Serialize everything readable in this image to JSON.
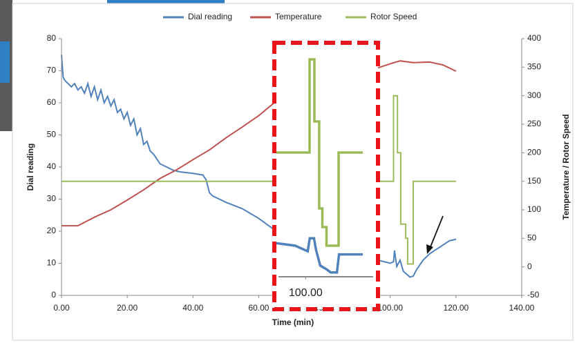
{
  "chart_data": [
    {
      "type": "line",
      "x_label": "Time (min)",
      "y_label": "Dial reading",
      "y2_label": "Temperature / Rotor Speed",
      "xlim": [
        0,
        140
      ],
      "xticks": [
        {
          "value": 0,
          "label": "0.00"
        },
        {
          "value": 20,
          "label": "20.00"
        },
        {
          "value": 40,
          "label": "40.00"
        },
        {
          "value": 60,
          "label": "60.00"
        },
        {
          "value": 80,
          "label": "80.00"
        },
        {
          "value": 100,
          "label": "100.00"
        },
        {
          "value": 120,
          "label": "120.00"
        },
        {
          "value": 140,
          "label": "140.00"
        }
      ],
      "ylim": [
        0,
        80
      ],
      "yticks": [
        0,
        10,
        20,
        30,
        40,
        50,
        60,
        70,
        80
      ],
      "y2lim": [
        -50,
        400
      ],
      "y2ticks": [
        -50,
        0,
        50,
        100,
        150,
        200,
        250,
        300,
        350,
        400
      ],
      "grid": false,
      "legend": "top",
      "series": [
        {
          "name": "Dial reading",
          "color": "#4f81bd",
          "x": [
            0,
            0.5,
            1,
            2,
            3,
            4,
            5,
            6,
            7,
            8,
            9,
            10,
            11,
            12,
            13,
            14,
            15,
            16,
            17,
            18,
            19,
            20,
            21,
            22,
            23,
            24,
            25,
            26,
            27,
            28,
            30,
            32,
            34,
            36,
            40,
            43,
            44,
            45,
            46,
            50,
            55,
            60,
            64,
            66,
            100,
            101,
            101.3,
            102,
            103,
            104,
            106,
            107,
            108,
            110,
            112,
            115,
            118,
            120
          ],
          "values": [
            75,
            68,
            67,
            66,
            65,
            66,
            64,
            65,
            63,
            66,
            62,
            65,
            61,
            64,
            60,
            62,
            59,
            61,
            57,
            58,
            55,
            57,
            53,
            55,
            50,
            52,
            47,
            48,
            45,
            44,
            41,
            40,
            39,
            38.5,
            38,
            37.5,
            36,
            32,
            31,
            29,
            27,
            24,
            21,
            19,
            10,
            10.5,
            14,
            9,
            11,
            7.5,
            5.7,
            6,
            8,
            11,
            13,
            15,
            17,
            17.5
          ]
        },
        {
          "name": "Temperature",
          "color": "#c0504d",
          "axis": "y2",
          "x": [
            0,
            5,
            10,
            15,
            20,
            25,
            30,
            35,
            40,
            45,
            50,
            55,
            60,
            65,
            100,
            103,
            107,
            112,
            116,
            120
          ],
          "values": [
            72,
            72,
            87,
            100,
            117,
            135,
            155,
            170,
            188,
            205,
            226,
            245,
            265,
            289,
            356,
            361,
            358,
            359,
            354,
            343
          ]
        },
        {
          "name": "Rotor Speed",
          "color": "#9bbb59",
          "axis": "y2",
          "x": [
            0,
            65,
            100,
            101,
            101,
            102.2,
            102.2,
            103.2,
            103.2,
            104.7,
            104.7,
            105.3,
            105.3,
            107,
            107,
            120
          ],
          "values": [
            150,
            150,
            150,
            150,
            300,
            300,
            200,
            200,
            75,
            75,
            50,
            50,
            5,
            5,
            150,
            150
          ]
        }
      ]
    },
    {
      "type": "line",
      "xlim": [
        98.5,
        103.5
      ],
      "xticks": [
        {
          "value": 100,
          "label": "100.00"
        }
      ],
      "ylim": [
        0,
        400
      ],
      "y2lim": [
        0,
        40
      ],
      "series": [
        {
          "color": "#9bbb59",
          "x": [
            98.6,
            100.19,
            100.19,
            100.42,
            100.42,
            100.65,
            100.65,
            100.8,
            100.8,
            101.0,
            101.0,
            101.58,
            101.58,
            102.74
          ],
          "values": [
            200,
            200,
            350,
            350,
            250,
            250,
            110,
            110,
            80,
            80,
            50,
            50,
            200,
            200
          ]
        },
        {
          "color": "#4f81bd",
          "axis": "y2",
          "x": [
            98.6,
            99.5,
            100.1,
            100.2,
            100.4,
            100.5,
            100.7,
            101.0,
            101.2,
            101.5,
            101.6,
            102.74
          ],
          "values": [
            5.4,
            5,
            4.1,
            6.2,
            6.2,
            4.3,
            1.8,
            1.2,
            0.7,
            0.7,
            3.6,
            3.6
          ]
        }
      ]
    }
  ]
}
